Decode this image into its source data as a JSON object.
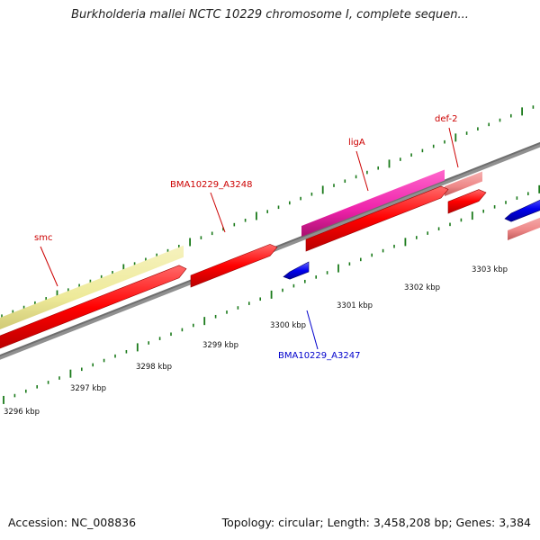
{
  "title": "Burkholderia mallei NCTC 10229 chromosome I, complete sequen...",
  "footer": {
    "accession": "Accession: NC_008836",
    "stats": "Topology: circular; Length: 3,458,208 bp; Genes: 3,384"
  },
  "kbp_labels": [
    "3296 kbp",
    "3297 kbp",
    "3298 kbp",
    "3299 kbp",
    "3300 kbp",
    "3301 kbp",
    "3302 kbp",
    "3303 kbp"
  ],
  "gene_labels": {
    "smc": "smc",
    "bma_a3248": "BMA10229_A3248",
    "liga": "ligA",
    "def2": "def-2",
    "bma_a3247": "BMA10229_A3247"
  },
  "colors": {
    "backbone": "#808080",
    "tick": "#1a7a1a",
    "forward_cds": "#ff0000",
    "reverse_cds": "#0000ee",
    "smc_band": "#eeea9a",
    "liga_band": "#ee22aa",
    "def2_band": "#ee8888",
    "forward_label": "#cc0000",
    "reverse_label": "#0000cc"
  }
}
